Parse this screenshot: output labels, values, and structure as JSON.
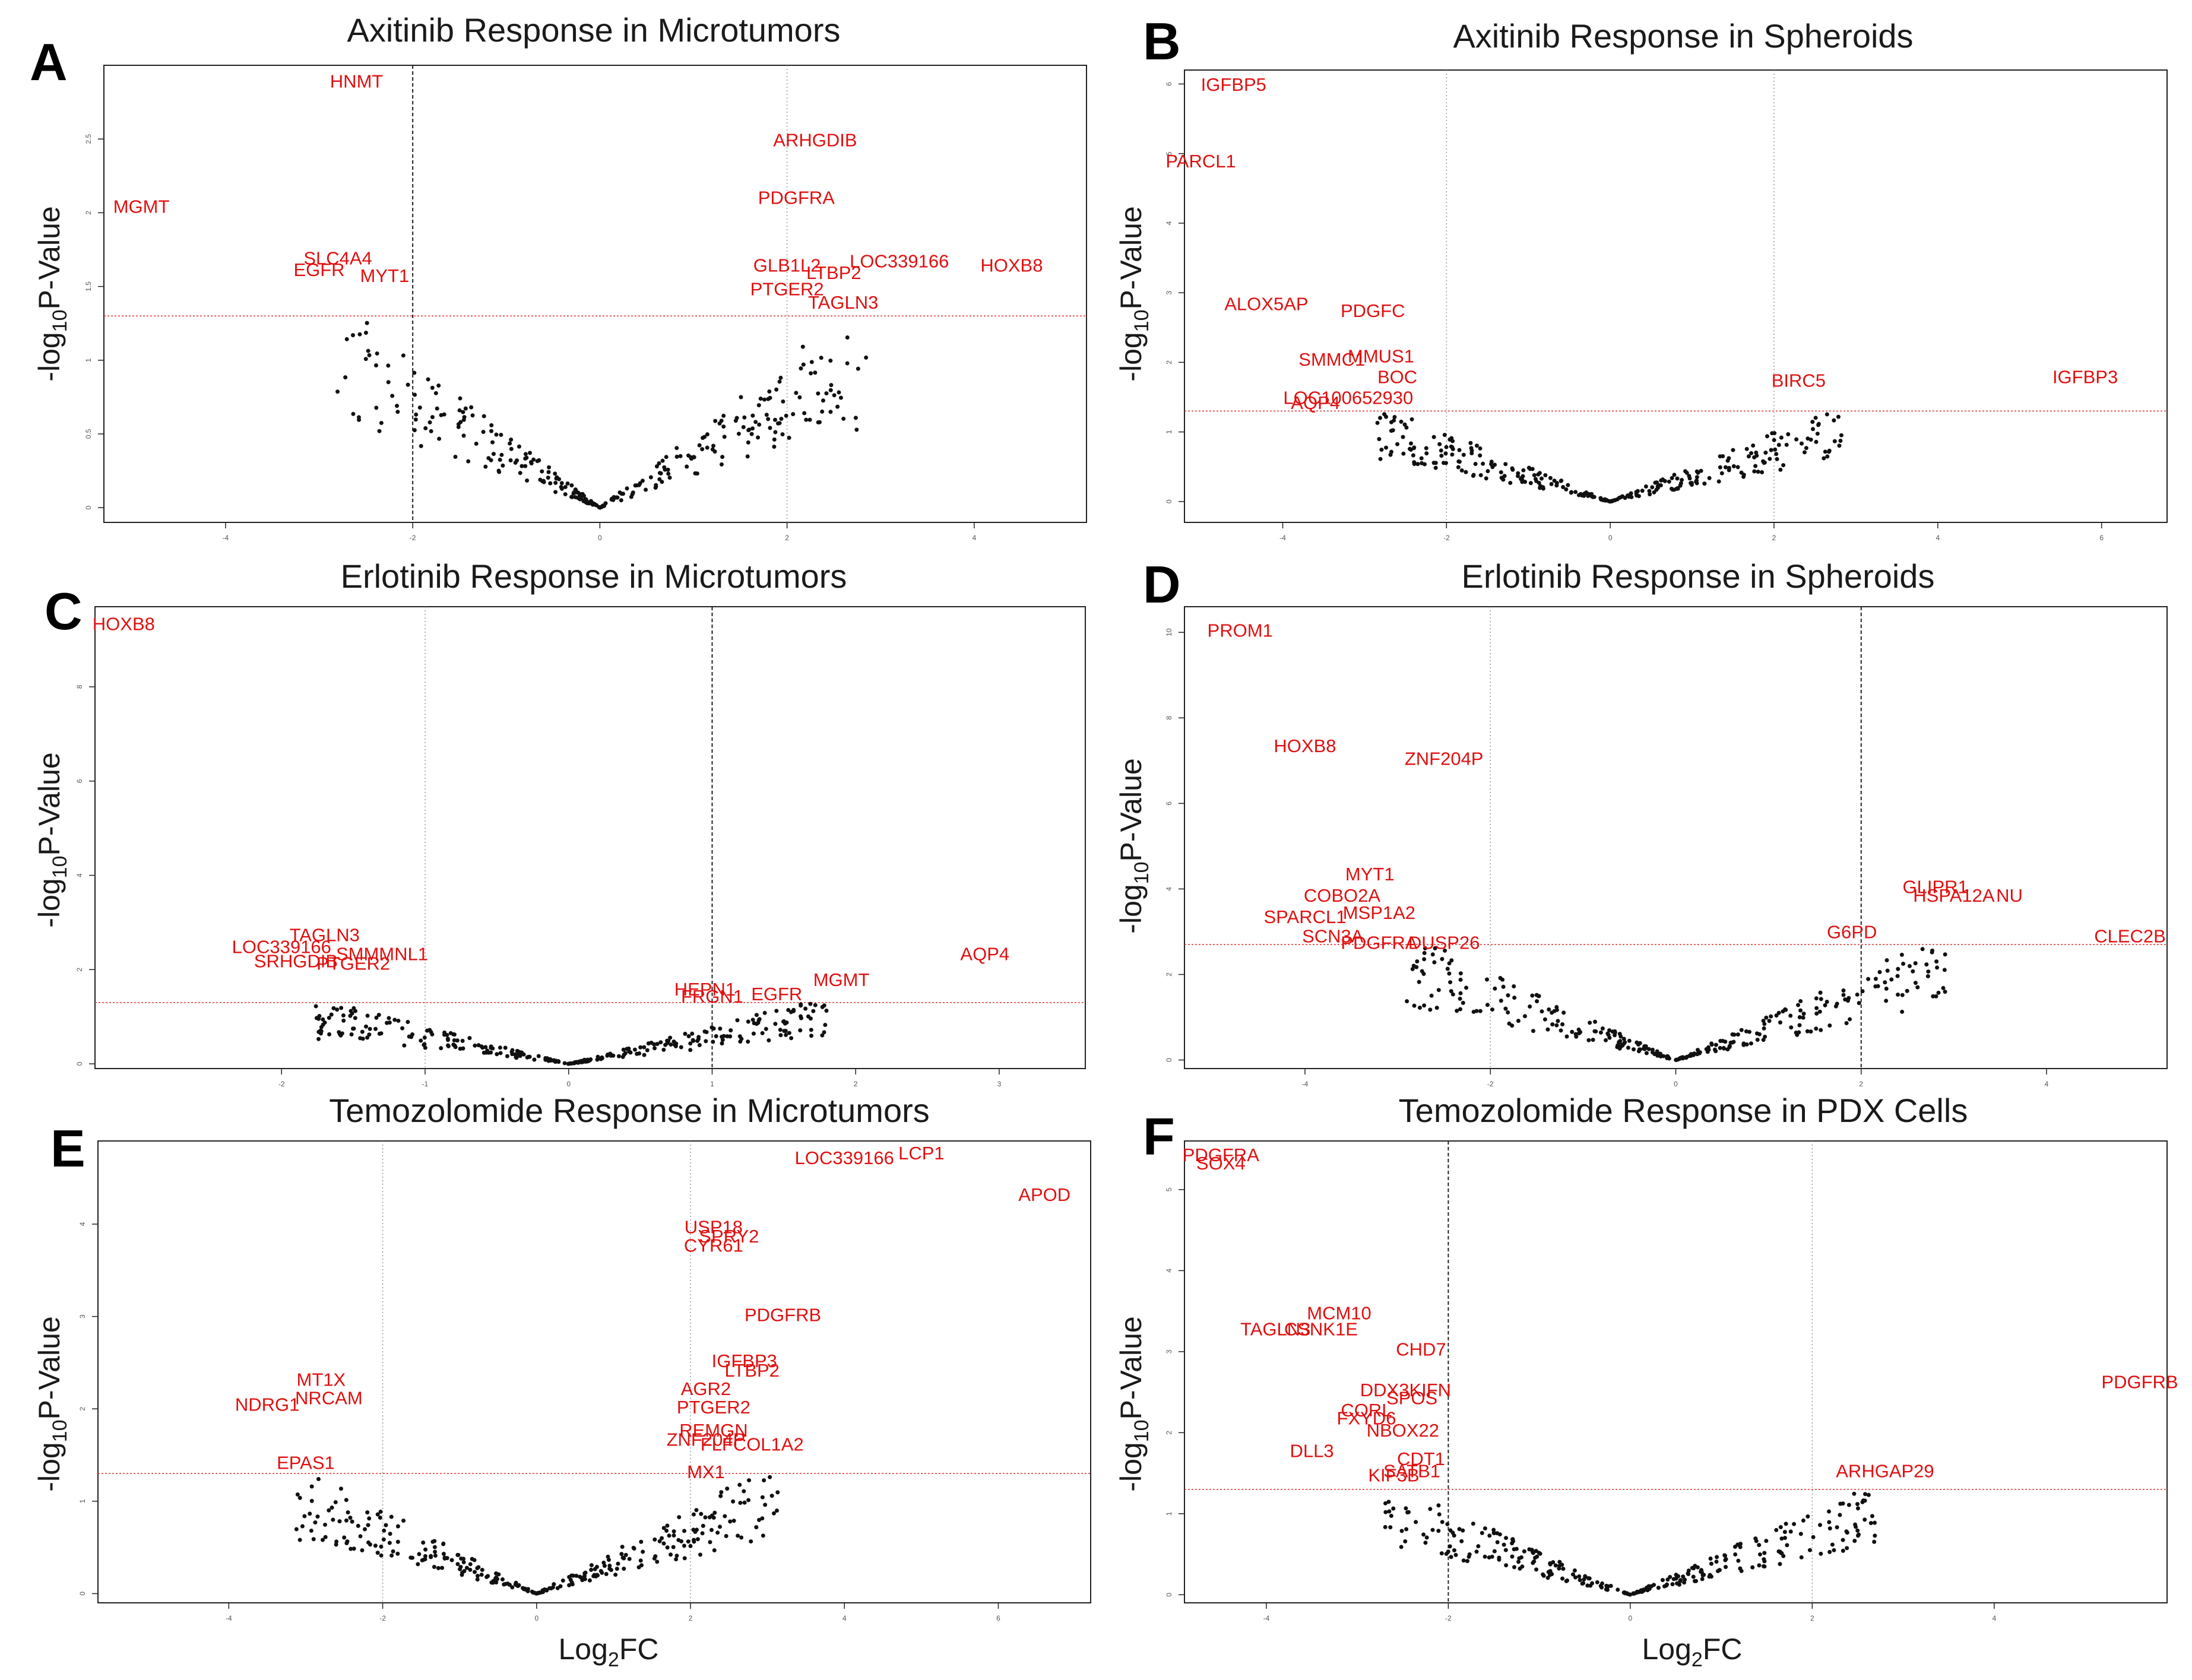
{
  "colors": {
    "label": "#e01010",
    "threshold": "#e03030",
    "point": "#111111",
    "axis": "#222222"
  },
  "chart_data": [
    {
      "panel": "A",
      "type": "scatter",
      "title": "Axitinib Response in Microtumors",
      "xlabel": "",
      "ylabel": "-log10P-Value",
      "xlim": [
        -5.3,
        5.2
      ],
      "ylim": [
        -0.1,
        3.0
      ],
      "xticks": [
        -4,
        -2,
        0,
        2,
        4
      ],
      "yticks": [
        0,
        0.5,
        1.0,
        1.5,
        2.0,
        2.5
      ],
      "vlines": [
        {
          "x": -2,
          "style": "dash"
        },
        {
          "x": 2,
          "style": "dot"
        }
      ],
      "hline": 1.3,
      "genes": [
        {
          "name": "HNMT",
          "x": -2.6,
          "y": 2.85
        },
        {
          "name": "MGMT",
          "x": -4.9,
          "y": 2.0
        },
        {
          "name": "SLC4A4",
          "x": -2.8,
          "y": 1.65
        },
        {
          "name": "EGFR",
          "x": -3.0,
          "y": 1.57
        },
        {
          "name": "MYT1",
          "x": -2.3,
          "y": 1.53
        },
        {
          "name": "ARHGDIB",
          "x": 2.3,
          "y": 2.45
        },
        {
          "name": "PDGFRA",
          "x": 2.1,
          "y": 2.06
        },
        {
          "name": "GLB1L2",
          "x": 2.0,
          "y": 1.6
        },
        {
          "name": "LTBP2",
          "x": 2.5,
          "y": 1.55
        },
        {
          "name": "LOC339166",
          "x": 3.2,
          "y": 1.63
        },
        {
          "name": "HOXB8",
          "x": 4.4,
          "y": 1.6
        },
        {
          "name": "PTGER2",
          "x": 2.0,
          "y": 1.44
        },
        {
          "name": "TAGLN3",
          "x": 2.6,
          "y": 1.35
        }
      ]
    },
    {
      "panel": "B",
      "type": "scatter",
      "title": "Axitinib Response in Spheroids",
      "xlabel": "",
      "ylabel": "-log10P-Value",
      "xlim": [
        -5.2,
        6.8
      ],
      "ylim": [
        -0.3,
        6.2
      ],
      "xticks": [
        -4,
        -2,
        0,
        2,
        4,
        6
      ],
      "yticks": [
        0,
        1,
        2,
        3,
        4,
        5,
        6
      ],
      "vlines": [
        {
          "x": -2,
          "style": "dot"
        },
        {
          "x": 2,
          "style": "dot"
        }
      ],
      "hline": 1.3,
      "genes": [
        {
          "name": "IGFBP5",
          "x": -4.6,
          "y": 5.9
        },
        {
          "name": "PARCL1",
          "x": -5.0,
          "y": 4.8
        },
        {
          "name": "ALOX5AP",
          "x": -4.2,
          "y": 2.75
        },
        {
          "name": "PDGFC",
          "x": -2.9,
          "y": 2.65
        },
        {
          "name": "SMMC1",
          "x": -3.4,
          "y": 1.95
        },
        {
          "name": "MMUS1",
          "x": -2.8,
          "y": 2.0
        },
        {
          "name": "BOC",
          "x": -2.6,
          "y": 1.7
        },
        {
          "name": "LOC100652930",
          "x": -3.2,
          "y": 1.4
        },
        {
          "name": "AQP4",
          "x": -3.6,
          "y": 1.33
        },
        {
          "name": "BIRC5",
          "x": 2.3,
          "y": 1.65
        },
        {
          "name": "IGFBP3",
          "x": 5.8,
          "y": 1.7
        }
      ]
    },
    {
      "panel": "C",
      "type": "scatter",
      "title": "Erlotinib Response in Microtumors",
      "xlabel": "",
      "ylabel": "-log10P-Value",
      "xlim": [
        -3.3,
        3.6
      ],
      "ylim": [
        -0.1,
        9.7
      ],
      "xticks": [
        -2,
        -1,
        0,
        1,
        2,
        3
      ],
      "yticks": [
        0,
        2,
        4,
        6,
        8
      ],
      "vlines": [
        {
          "x": -1,
          "style": "dot"
        },
        {
          "x": 1,
          "style": "dash"
        }
      ],
      "hline": 1.3,
      "genes": [
        {
          "name": "HOXB8",
          "x": -3.1,
          "y": 9.2
        },
        {
          "name": "TAGLN3",
          "x": -1.7,
          "y": 2.6
        },
        {
          "name": "LOC339166",
          "x": -2.0,
          "y": 2.35
        },
        {
          "name": "SMMMNL1",
          "x": -1.3,
          "y": 2.2
        },
        {
          "name": "SRHGDIB",
          "x": -1.9,
          "y": 2.05
        },
        {
          "name": "PTGER2",
          "x": -1.5,
          "y": 2.0
        },
        {
          "name": "HEPN1",
          "x": 0.95,
          "y": 1.45
        },
        {
          "name": "FRGN1",
          "x": 1.0,
          "y": 1.3
        },
        {
          "name": "EGFR",
          "x": 1.45,
          "y": 1.35
        },
        {
          "name": "MGMT",
          "x": 1.9,
          "y": 1.65
        },
        {
          "name": "AQP4",
          "x": 2.9,
          "y": 2.2
        }
      ]
    },
    {
      "panel": "D",
      "type": "scatter",
      "title": "Erlotinib Response in Spheroids",
      "xlabel": "",
      "ylabel": "-log10P-Value",
      "xlim": [
        -5.3,
        5.3
      ],
      "ylim": [
        -0.2,
        10.6
      ],
      "xticks": [
        -4,
        -2,
        0,
        2,
        4
      ],
      "yticks": [
        0,
        2,
        4,
        6,
        8,
        10
      ],
      "vlines": [
        {
          "x": -2,
          "style": "dot"
        },
        {
          "x": 2,
          "style": "dash"
        }
      ],
      "hline": 2.7,
      "genes": [
        {
          "name": "PROM1",
          "x": -4.7,
          "y": 9.9
        },
        {
          "name": "HOXB8",
          "x": -4.0,
          "y": 7.2
        },
        {
          "name": "ZNF204P",
          "x": -2.5,
          "y": 6.9
        },
        {
          "name": "MYT1",
          "x": -3.3,
          "y": 4.2
        },
        {
          "name": "COBO2A",
          "x": -3.6,
          "y": 3.7
        },
        {
          "name": "SPARCL1",
          "x": -4.0,
          "y": 3.2
        },
        {
          "name": "MSP1A2",
          "x": -3.2,
          "y": 3.3
        },
        {
          "name": "SCN3A",
          "x": -3.7,
          "y": 2.75
        },
        {
          "name": "PDGFRA",
          "x": -3.2,
          "y": 2.6
        },
        {
          "name": "DUSP26",
          "x": -2.5,
          "y": 2.6
        },
        {
          "name": "GLIPR1",
          "x": 2.8,
          "y": 3.9
        },
        {
          "name": "HSPA12A",
          "x": 3.0,
          "y": 3.7
        },
        {
          "name": "NU",
          "x": 3.6,
          "y": 3.7
        },
        {
          "name": "G6PD",
          "x": 1.9,
          "y": 2.85
        },
        {
          "name": "CLEC2B",
          "x": 4.9,
          "y": 2.75
        }
      ]
    },
    {
      "panel": "E",
      "type": "scatter",
      "title": "Temozolomide Response in Microtumors",
      "xlabel": "Log2FC",
      "ylabel": "-log10P-Value",
      "xlim": [
        -5.7,
        7.2
      ],
      "ylim": [
        -0.1,
        4.9
      ],
      "xticks": [
        -4,
        -2,
        0,
        2,
        4,
        6
      ],
      "yticks": [
        0,
        1,
        2,
        3,
        4
      ],
      "vlines": [
        {
          "x": -2,
          "style": "dot"
        },
        {
          "x": 2,
          "style": "dot"
        }
      ],
      "hline": 1.3,
      "genes": [
        {
          "name": "LCP1",
          "x": 5.0,
          "y": 4.7
        },
        {
          "name": "LOC339166",
          "x": 4.0,
          "y": 4.65
        },
        {
          "name": "APOD",
          "x": 6.6,
          "y": 4.25
        },
        {
          "name": "USP18",
          "x": 2.3,
          "y": 3.9
        },
        {
          "name": "SPRY2",
          "x": 2.5,
          "y": 3.8
        },
        {
          "name": "CYR61",
          "x": 2.3,
          "y": 3.7
        },
        {
          "name": "PDGFRB",
          "x": 3.2,
          "y": 2.95
        },
        {
          "name": "IGFBP3",
          "x": 2.7,
          "y": 2.45
        },
        {
          "name": "LTBP2",
          "x": 2.8,
          "y": 2.35
        },
        {
          "name": "MT1X",
          "x": -2.8,
          "y": 2.25
        },
        {
          "name": "NRCAM",
          "x": -2.7,
          "y": 2.05
        },
        {
          "name": "NDRG1",
          "x": -3.5,
          "y": 1.98
        },
        {
          "name": "AGR2",
          "x": 2.2,
          "y": 2.15
        },
        {
          "name": "PTGER2",
          "x": 2.3,
          "y": 1.95
        },
        {
          "name": "REMGN",
          "x": 2.3,
          "y": 1.7
        },
        {
          "name": "ZNF204P",
          "x": 2.2,
          "y": 1.6
        },
        {
          "name": "FLFCOL1A2",
          "x": 2.8,
          "y": 1.55
        },
        {
          "name": "EPAS1",
          "x": -3.0,
          "y": 1.35
        },
        {
          "name": "MX1",
          "x": 2.2,
          "y": 1.25
        }
      ]
    },
    {
      "panel": "F",
      "type": "scatter",
      "title": "Temozolomide Response in PDX Cells",
      "xlabel": "Log2FC",
      "ylabel": "-log10P-Value",
      "xlim": [
        -4.9,
        5.9
      ],
      "ylim": [
        -0.1,
        5.6
      ],
      "xticks": [
        -4,
        -2,
        0,
        2,
        4
      ],
      "yticks": [
        0,
        1,
        2,
        3,
        4,
        5
      ],
      "vlines": [
        {
          "x": -2,
          "style": "dash"
        },
        {
          "x": 2,
          "style": "dot"
        }
      ],
      "hline": 1.3,
      "genes": [
        {
          "name": "PDGFRA",
          "x": -4.5,
          "y": 5.35
        },
        {
          "name": "SOX4",
          "x": -4.5,
          "y": 5.25
        },
        {
          "name": "MCM10",
          "x": -3.2,
          "y": 3.4
        },
        {
          "name": "TAGLN3",
          "x": -3.9,
          "y": 3.2
        },
        {
          "name": "CSNK1E",
          "x": -3.4,
          "y": 3.2
        },
        {
          "name": "CHD7",
          "x": -2.3,
          "y": 2.95
        },
        {
          "name": "DDX3",
          "x": -2.7,
          "y": 2.45
        },
        {
          "name": "KIFN",
          "x": -2.2,
          "y": 2.45
        },
        {
          "name": "SPOS",
          "x": -2.4,
          "y": 2.35
        },
        {
          "name": "CORL",
          "x": -2.9,
          "y": 2.2
        },
        {
          "name": "FXYD6",
          "x": -2.9,
          "y": 2.1
        },
        {
          "name": "NBOX22",
          "x": -2.5,
          "y": 1.95
        },
        {
          "name": "DLL3",
          "x": -3.5,
          "y": 1.7
        },
        {
          "name": "CDT1",
          "x": -2.3,
          "y": 1.6
        },
        {
          "name": "SATB1",
          "x": -2.4,
          "y": 1.45
        },
        {
          "name": "KIF3B",
          "x": -2.6,
          "y": 1.4
        },
        {
          "name": "ARHGAP29",
          "x": 2.8,
          "y": 1.45
        },
        {
          "name": "PDGFRB",
          "x": 5.6,
          "y": 2.55
        }
      ]
    }
  ]
}
